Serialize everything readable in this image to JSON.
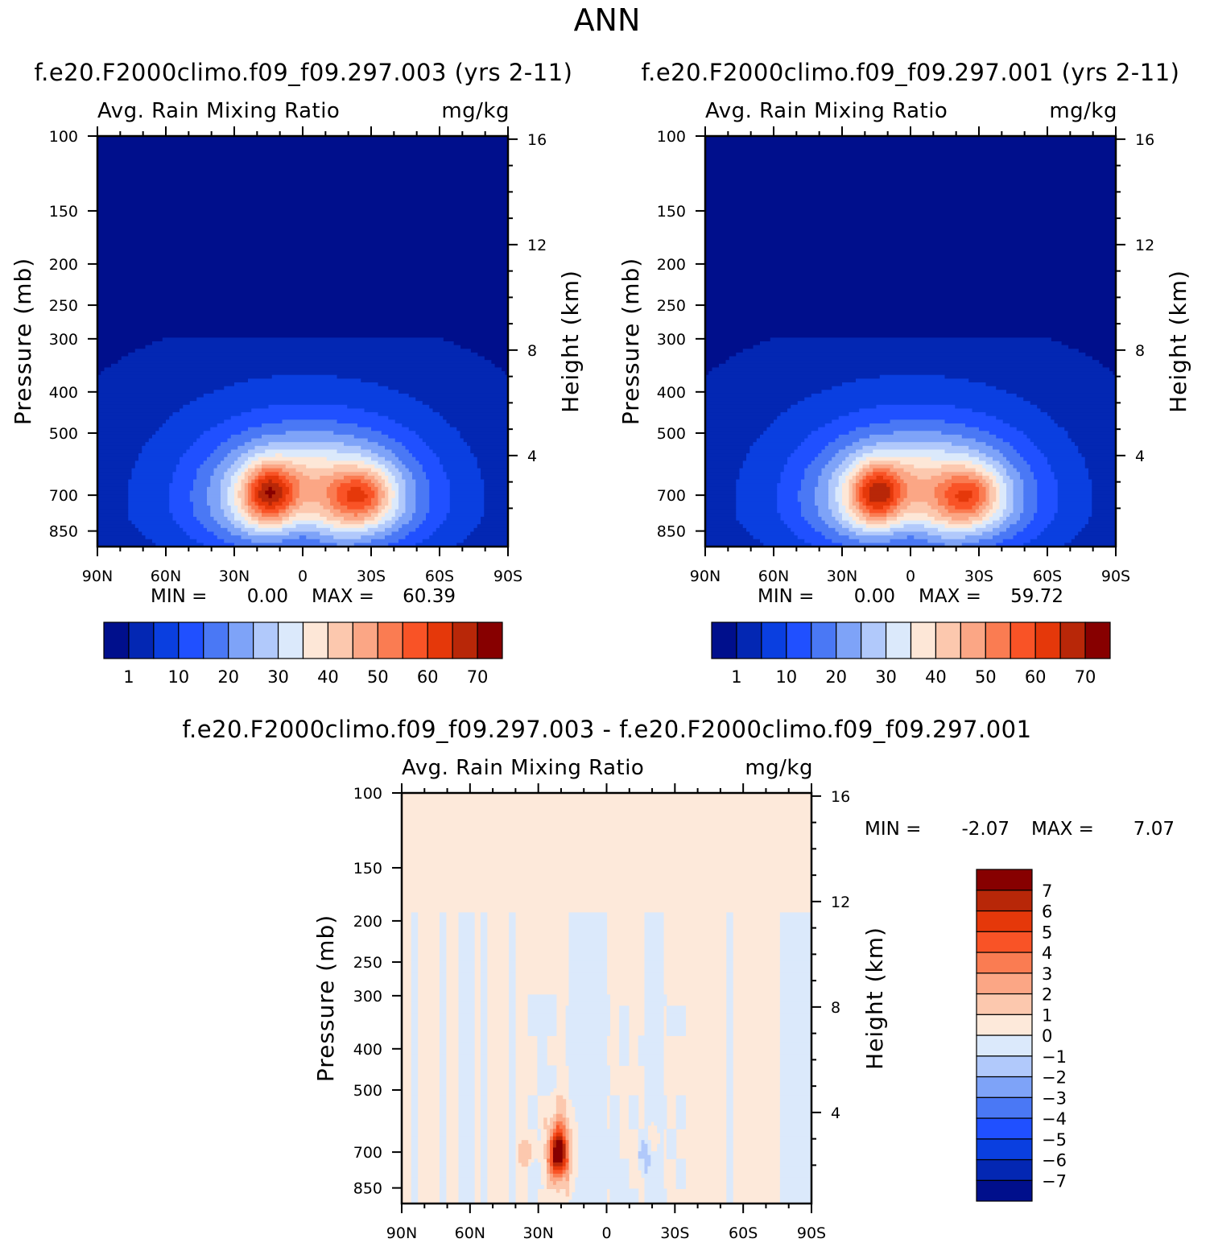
{
  "chart_data": {
    "type": "contour",
    "title": "ANN",
    "panels": [
      {
        "id": "case1",
        "case_title": "f.e20.F2000climo.f09_f09.297.003 (yrs 2-11)",
        "var_label": "Avg. Rain Mixing Ratio",
        "units": "mg/kg",
        "ylabel": "Pressure (mb)",
        "y2label": "Height (km)",
        "x_ticks": [
          "90N",
          "60N",
          "30N",
          "0",
          "30S",
          "60S",
          "90S"
        ],
        "y_ticks": [
          "100",
          "150",
          "200",
          "250",
          "300",
          "400",
          "500",
          "700",
          "850"
        ],
        "y2_ticks": [
          "16",
          "12",
          "8",
          "4"
        ],
        "min_label": "MIN =",
        "min_value": "0.00",
        "max_label": "MAX =",
        "max_value": "60.39",
        "colorbar_labels": [
          "1",
          "10",
          "20",
          "30",
          "40",
          "50",
          "60",
          "70"
        ]
      },
      {
        "id": "case2",
        "case_title": "f.e20.F2000climo.f09_f09.297.001 (yrs 2-11)",
        "var_label": "Avg. Rain Mixing Ratio",
        "units": "mg/kg",
        "ylabel": "Pressure (mb)",
        "y2label": "Height (km)",
        "x_ticks": [
          "90N",
          "60N",
          "30N",
          "0",
          "30S",
          "60S",
          "90S"
        ],
        "y_ticks": [
          "100",
          "150",
          "200",
          "250",
          "300",
          "400",
          "500",
          "700",
          "850"
        ],
        "y2_ticks": [
          "16",
          "12",
          "8",
          "4"
        ],
        "min_label": "MIN =",
        "min_value": "0.00",
        "max_label": "MAX =",
        "max_value": "59.72",
        "colorbar_labels": [
          "1",
          "10",
          "20",
          "30",
          "40",
          "50",
          "60",
          "70"
        ]
      },
      {
        "id": "diff",
        "case_title": "f.e20.F2000climo.f09_f09.297.003 - f.e20.F2000climo.f09_f09.297.001",
        "var_label": "Avg. Rain Mixing Ratio",
        "units": "mg/kg",
        "ylabel": "Pressure (mb)",
        "y2label": "Height (km)",
        "x_ticks": [
          "90N",
          "60N",
          "30N",
          "0",
          "30S",
          "60S",
          "90S"
        ],
        "y_ticks": [
          "100",
          "150",
          "200",
          "250",
          "300",
          "400",
          "500",
          "700",
          "850"
        ],
        "y2_ticks": [
          "16",
          "12",
          "8",
          "4"
        ],
        "min_label": "MIN =",
        "min_value": "-2.07",
        "max_label": "MAX =",
        "max_value": "7.07",
        "colorbar_labels": [
          "7",
          "6",
          "5",
          "4",
          "3",
          "2",
          "1",
          "0",
          "-1",
          "-2",
          "-3",
          "-4",
          "-5",
          "-6",
          "-7"
        ]
      }
    ],
    "palette_abs": [
      "#000f8c",
      "#0327b3",
      "#0a3fe0",
      "#2050ff",
      "#4a78f5",
      "#7ea3f8",
      "#b1c9fb",
      "#dbe9fb",
      "#fde7d7",
      "#fcc8ae",
      "#fba685",
      "#fa7c52",
      "#f95326",
      "#e5380a",
      "#b82708",
      "#870000"
    ],
    "palette_diff": [
      "#000f8c",
      "#0327b3",
      "#0a3fe0",
      "#2050ff",
      "#4a78f5",
      "#7ea3f8",
      "#b1c9fb",
      "#dbe9fb",
      "#fde9da",
      "#fcc8ae",
      "#fba685",
      "#fa7c52",
      "#f95326",
      "#e5380a",
      "#b82708",
      "#870000"
    ]
  }
}
